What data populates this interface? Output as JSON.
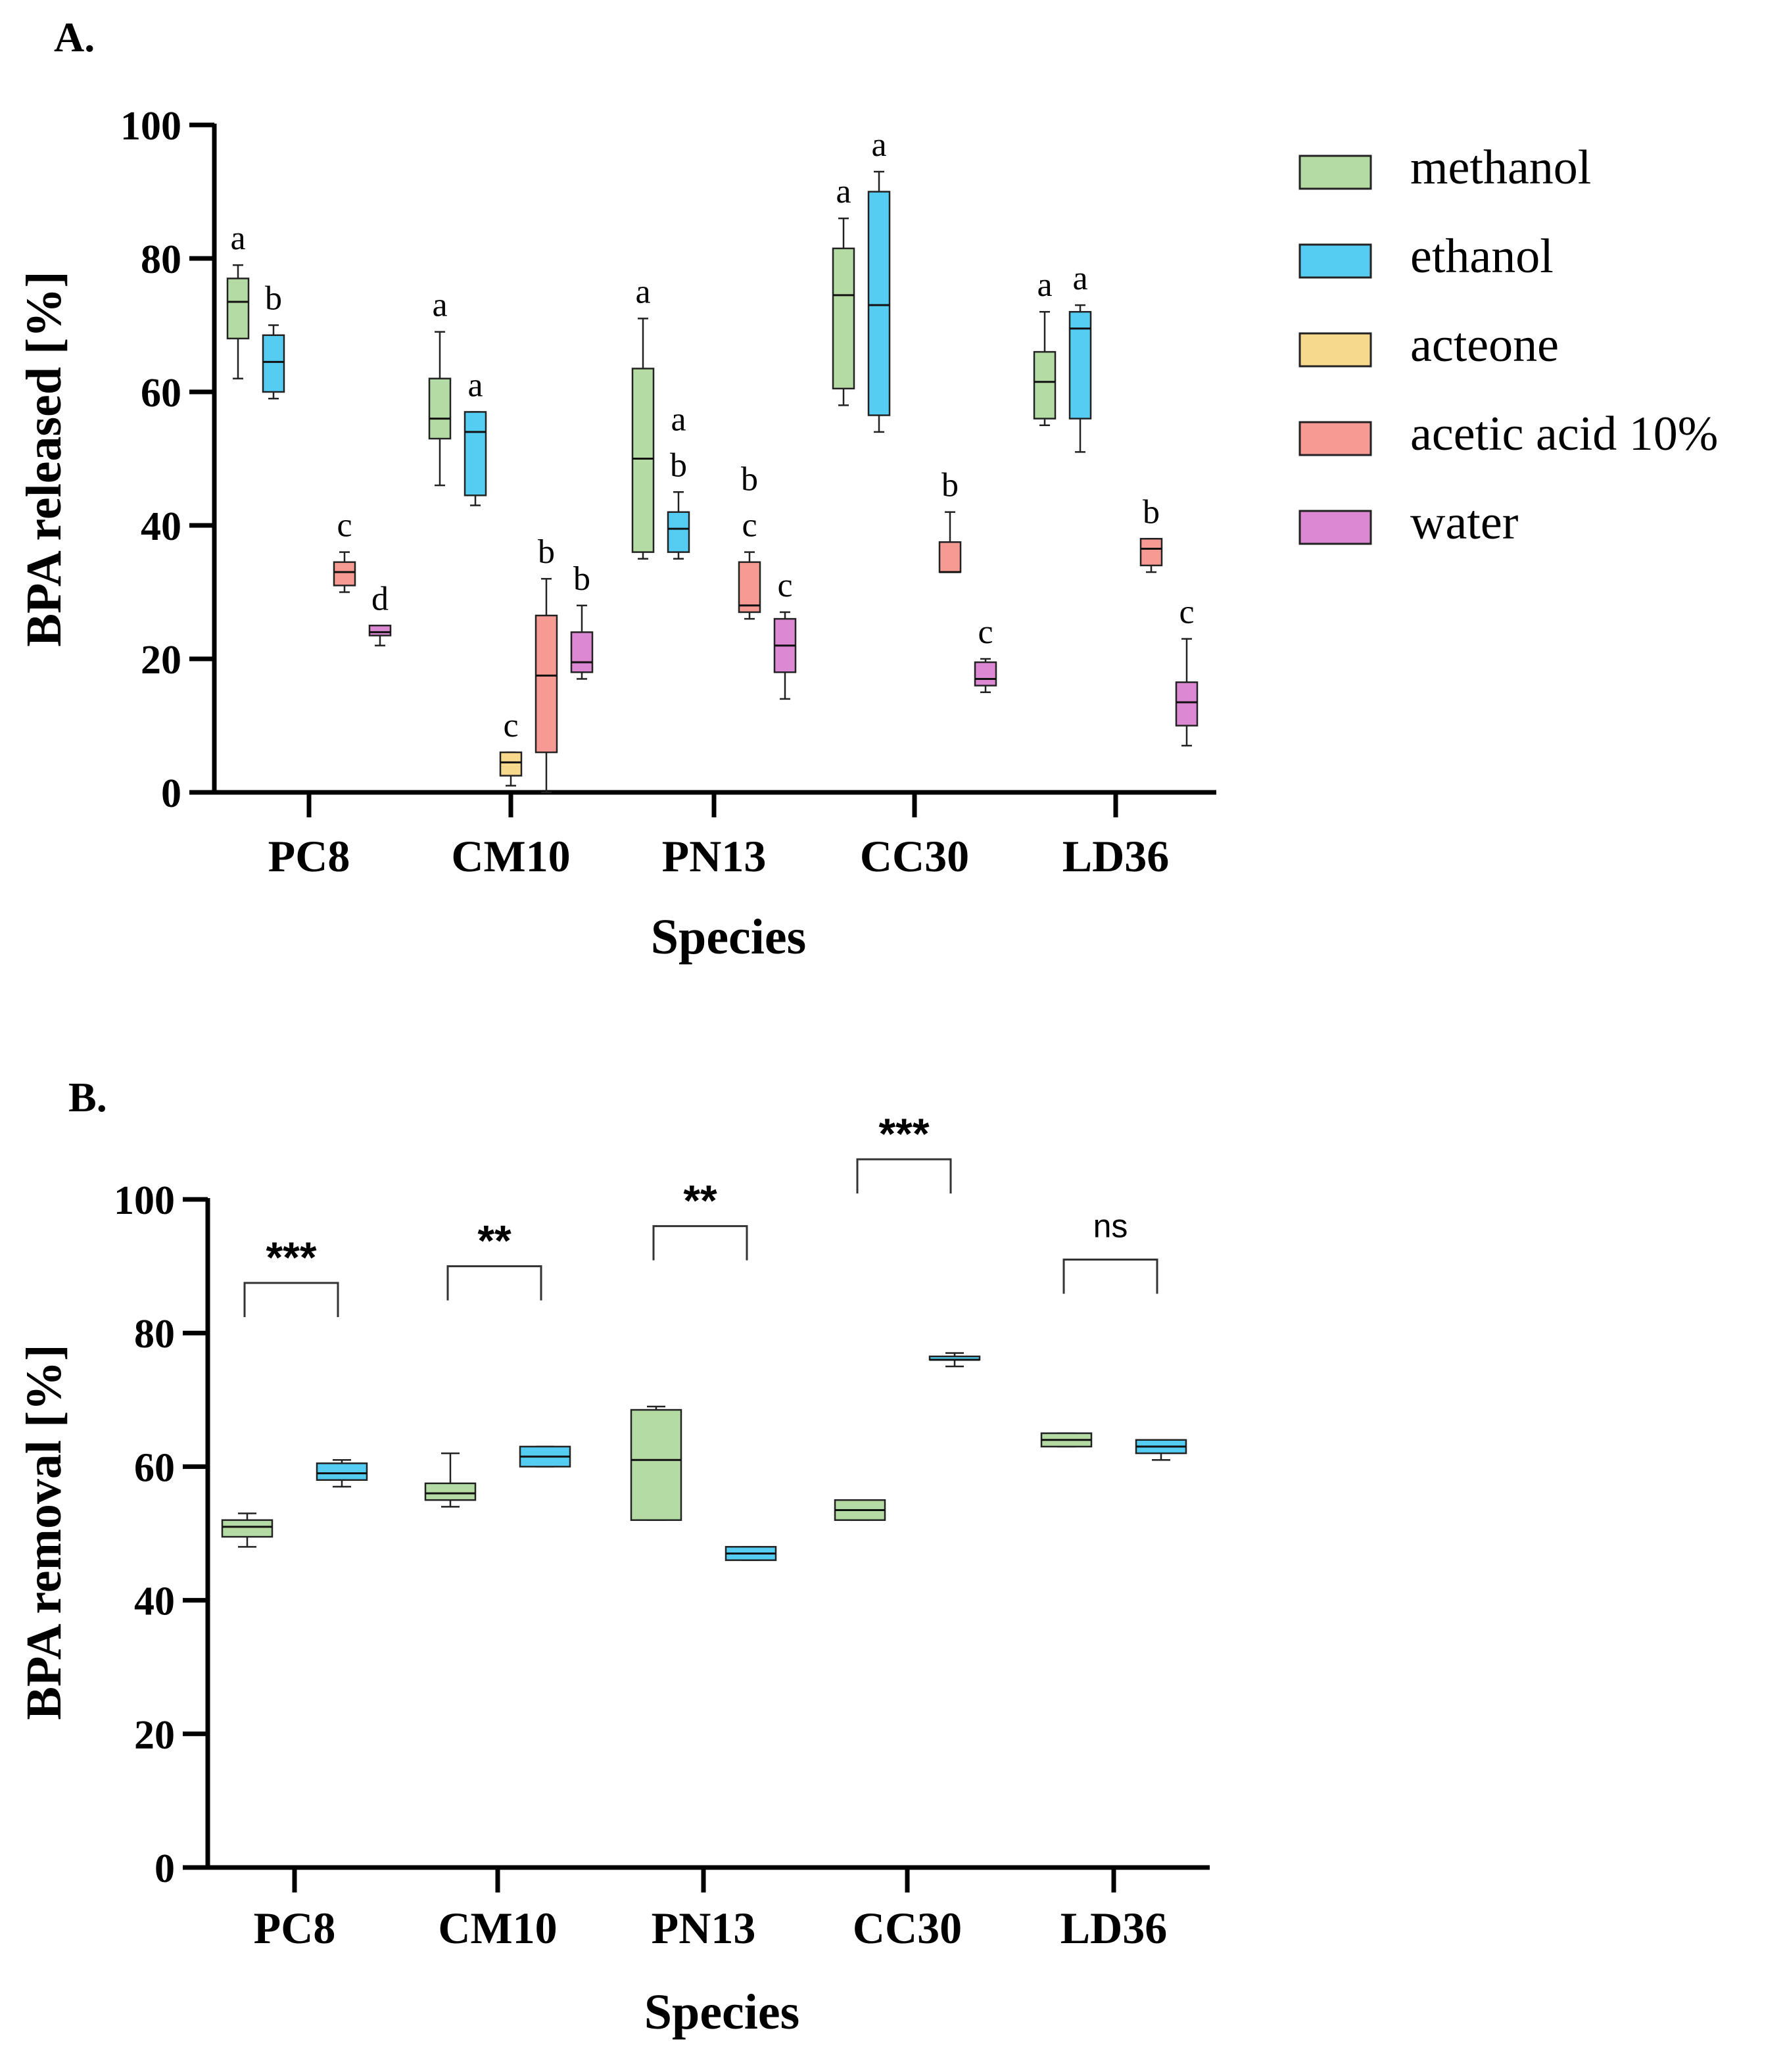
{
  "panels": {
    "a": {
      "label": "A."
    },
    "b": {
      "label": "B."
    }
  },
  "legend": [
    {
      "name": "methanol",
      "color": "#b5dba4"
    },
    {
      "name": "ethanol",
      "color": "#55ccf2"
    },
    {
      "name": "acteone",
      "color": "#f7d98e"
    },
    {
      "name": "acetic acid 10%",
      "color": "#f89a94"
    },
    {
      "name": "water",
      "color": "#dc88d2"
    }
  ],
  "chart_data": [
    {
      "type": "box",
      "panel": "A.",
      "ylabel": "BPA released [%]",
      "xlabel": "Species",
      "ylim": [
        0,
        100
      ],
      "yticks": [
        0,
        20,
        40,
        60,
        80,
        100
      ],
      "categories": [
        "PC8",
        "CM10",
        "PN13",
        "CC30",
        "LD36"
      ],
      "series": [
        {
          "name": "methanol",
          "color": "#b5dba4",
          "boxes": [
            {
              "category": "PC8",
              "min": 62,
              "q1": 68,
              "median": 73.5,
              "q3": 77,
              "max": 79,
              "letter": "a"
            },
            {
              "category": "CM10",
              "min": 46,
              "q1": 53,
              "median": 56,
              "q3": 62,
              "max": 69,
              "letter": "a"
            },
            {
              "category": "PN13",
              "min": 35,
              "q1": 36,
              "median": 50,
              "q3": 63.5,
              "max": 71,
              "letter": "a"
            },
            {
              "category": "CC30",
              "min": 58,
              "q1": 60.5,
              "median": 74.5,
              "q3": 81.5,
              "max": 86,
              "letter": "a"
            },
            {
              "category": "LD36",
              "min": 55,
              "q1": 56,
              "median": 61.5,
              "q3": 66,
              "max": 72,
              "letter": "a"
            }
          ]
        },
        {
          "name": "ethanol",
          "color": "#55ccf2",
          "boxes": [
            {
              "category": "PC8",
              "min": 59,
              "q1": 60,
              "median": 64.5,
              "q3": 68.5,
              "max": 70,
              "letter": "b"
            },
            {
              "category": "CM10",
              "min": 43,
              "q1": 44.5,
              "median": 54,
              "q3": 57,
              "max": 57,
              "letter": "a"
            },
            {
              "category": "PN13",
              "min": 35,
              "q1": 36,
              "median": 39.5,
              "q3": 42,
              "max": 45,
              "letter": "a b"
            },
            {
              "category": "CC30",
              "min": 54,
              "q1": 56.5,
              "median": 73,
              "q3": 90,
              "max": 93,
              "letter": "a"
            },
            {
              "category": "LD36",
              "min": 51,
              "q1": 56,
              "median": 69.5,
              "q3": 72,
              "max": 73,
              "letter": "a"
            }
          ]
        },
        {
          "name": "acteone",
          "color": "#f7d98e",
          "boxes": [
            {
              "category": "CM10",
              "min": 1,
              "q1": 2.5,
              "median": 4.5,
              "q3": 6,
              "max": 6,
              "letter": "c"
            }
          ]
        },
        {
          "name": "acetic acid 10%",
          "color": "#f89a94",
          "boxes": [
            {
              "category": "PC8",
              "min": 30,
              "q1": 31,
              "median": 33,
              "q3": 34.5,
              "max": 36,
              "letter": "c"
            },
            {
              "category": "CM10",
              "min": 0,
              "q1": 6,
              "median": 17.5,
              "q3": 26.5,
              "max": 32,
              "letter": "b"
            },
            {
              "category": "PN13",
              "min": 26,
              "q1": 27,
              "median": 28,
              "q3": 34.5,
              "max": 36,
              "letter": "b c"
            },
            {
              "category": "CC30",
              "min": 33,
              "q1": 33,
              "median": 33,
              "q3": 37.5,
              "max": 42,
              "letter": "b"
            },
            {
              "category": "LD36",
              "min": 33,
              "q1": 34,
              "median": 36.5,
              "q3": 38,
              "max": 38,
              "letter": "b"
            }
          ]
        },
        {
          "name": "water",
          "color": "#dc88d2",
          "boxes": [
            {
              "category": "PC8",
              "min": 22,
              "q1": 23.5,
              "median": 24,
              "q3": 25,
              "max": 25,
              "letter": "d"
            },
            {
              "category": "CM10",
              "min": 17,
              "q1": 18,
              "median": 19.5,
              "q3": 24,
              "max": 28,
              "letter": "b"
            },
            {
              "category": "PN13",
              "min": 14,
              "q1": 18,
              "median": 22,
              "q3": 26,
              "max": 27,
              "letter": "c"
            },
            {
              "category": "CC30",
              "min": 15,
              "q1": 16,
              "median": 17,
              "q3": 19.5,
              "max": 20,
              "letter": "c"
            },
            {
              "category": "LD36",
              "min": 7,
              "q1": 10,
              "median": 13.5,
              "q3": 16.5,
              "max": 23,
              "letter": "c"
            }
          ]
        }
      ]
    },
    {
      "type": "box",
      "panel": "B.",
      "ylabel": "BPA removal [%]",
      "xlabel": "Species",
      "ylim": [
        0,
        100
      ],
      "yticks": [
        0,
        20,
        40,
        60,
        80,
        100
      ],
      "categories": [
        "PC8",
        "CM10",
        "PN13",
        "CC30",
        "LD36"
      ],
      "series": [
        {
          "name": "methanol",
          "color": "#b5dba4",
          "boxes": [
            {
              "category": "PC8",
              "min": 48,
              "q1": 49.5,
              "median": 51,
              "q3": 52,
              "max": 53
            },
            {
              "category": "CM10",
              "min": 54,
              "q1": 55,
              "median": 56,
              "q3": 57.5,
              "max": 62
            },
            {
              "category": "PN13",
              "min": 52,
              "q1": 52,
              "median": 61,
              "q3": 68.5,
              "max": 69
            },
            {
              "category": "CC30",
              "min": 52,
              "q1": 52,
              "median": 53.5,
              "q3": 55,
              "max": 55
            },
            {
              "category": "LD36",
              "min": 63,
              "q1": 63,
              "median": 64,
              "q3": 65,
              "max": 65
            }
          ]
        },
        {
          "name": "ethanol",
          "color": "#55ccf2",
          "boxes": [
            {
              "category": "PC8",
              "min": 57,
              "q1": 58,
              "median": 59,
              "q3": 60.5,
              "max": 61
            },
            {
              "category": "CM10",
              "min": 60,
              "q1": 60,
              "median": 61.5,
              "q3": 63,
              "max": 63
            },
            {
              "category": "PN13",
              "min": 46,
              "q1": 46,
              "median": 47,
              "q3": 48,
              "max": 48
            },
            {
              "category": "CC30",
              "min": 75,
              "q1": 76,
              "median": 76,
              "q3": 76.5,
              "max": 77
            },
            {
              "category": "LD36",
              "min": 61,
              "q1": 62,
              "median": 63,
              "q3": 64,
              "max": 64
            }
          ]
        }
      ],
      "significance": [
        {
          "category": "PC8",
          "label": "***",
          "y": 87.5
        },
        {
          "category": "CM10",
          "label": "**",
          "y": 90
        },
        {
          "category": "PN13",
          "label": "**",
          "y": 96
        },
        {
          "category": "CC30",
          "label": "***",
          "y": 106
        },
        {
          "category": "LD36",
          "label": "ns",
          "y": 91
        }
      ]
    }
  ]
}
